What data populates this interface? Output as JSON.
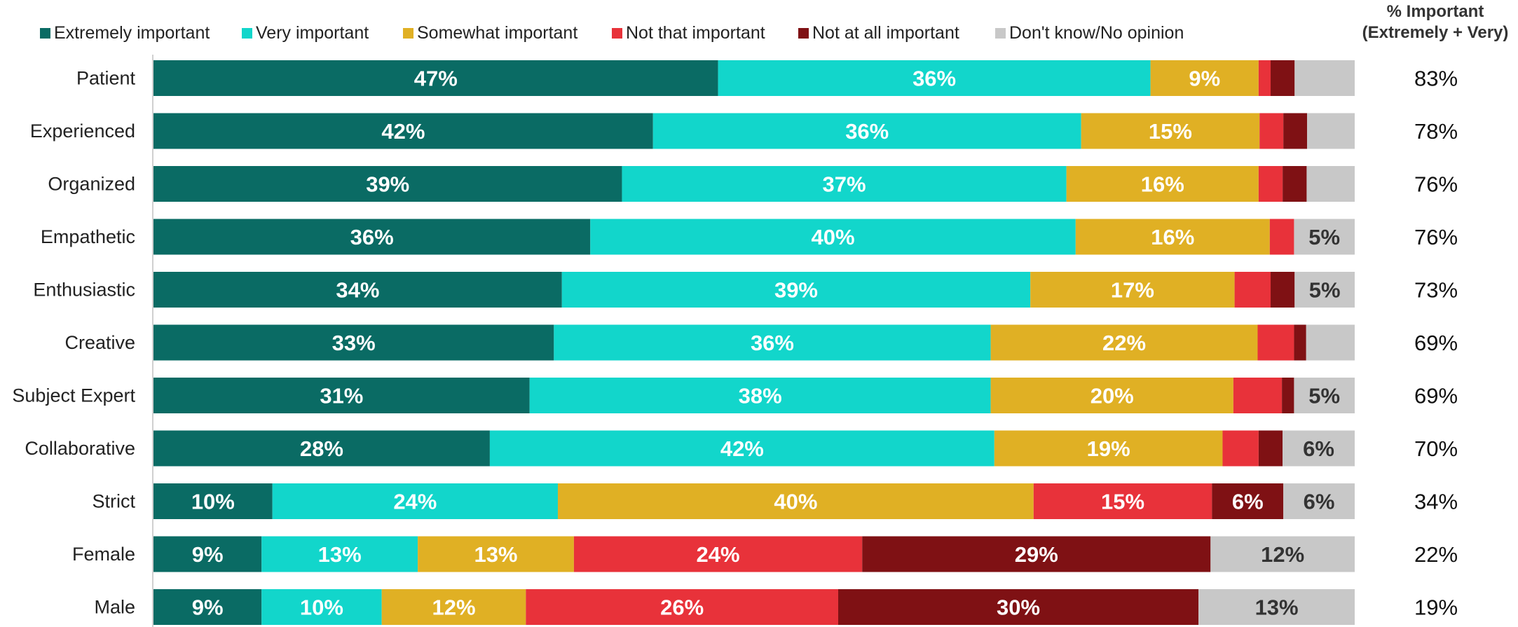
{
  "chart_data": {
    "type": "bar",
    "orientation": "horizontal",
    "stacked": true,
    "normalized": true,
    "legend_position": "top",
    "side_column_header": [
      "% Important",
      "(Extremely + Very)"
    ],
    "categories": [
      "Patient",
      "Experienced",
      "Organized",
      "Empathetic",
      "Enthusiastic",
      "Creative",
      "Subject Expert",
      "Collaborative",
      "Strict",
      "Female",
      "Male"
    ],
    "series": [
      {
        "name": "Extremely important",
        "color": "#0a6b64",
        "values": [
          47,
          42,
          39,
          36,
          34,
          33,
          31,
          28,
          10,
          9,
          9
        ],
        "labels": [
          "47%",
          "42%",
          "39%",
          "36%",
          "34%",
          "33%",
          "31%",
          "28%",
          "10%",
          "9%",
          "9%"
        ]
      },
      {
        "name": "Very important",
        "color": "#12d6cb",
        "values": [
          36,
          36,
          37,
          40,
          39,
          36,
          38,
          42,
          24,
          13,
          10
        ],
        "labels": [
          "36%",
          "36%",
          "37%",
          "40%",
          "39%",
          "36%",
          "38%",
          "42%",
          "24%",
          "13%",
          "10%"
        ]
      },
      {
        "name": "Somewhat important",
        "color": "#e0b024",
        "values": [
          9,
          15,
          16,
          16,
          17,
          22,
          20,
          19,
          40,
          13,
          12
        ],
        "labels": [
          "9%",
          "15%",
          "16%",
          "16%",
          "17%",
          "22%",
          "20%",
          "19%",
          "40%",
          "13%",
          "12%"
        ]
      },
      {
        "name": "Not that important",
        "color": "#e8323a",
        "values": [
          1,
          2,
          2,
          2,
          3,
          3,
          4,
          3,
          15,
          24,
          26
        ],
        "labels": [
          "",
          "",
          "",
          "",
          "",
          "",
          "",
          "",
          "15%",
          "24%",
          "26%"
        ]
      },
      {
        "name": "Not at all important",
        "color": "#7f1114",
        "values": [
          2,
          2,
          2,
          0,
          2,
          1,
          1,
          2,
          6,
          29,
          30
        ],
        "labels": [
          "",
          "",
          "",
          "",
          "",
          "",
          "",
          "",
          "6%",
          "29%",
          "30%"
        ]
      },
      {
        "name": "Don't know/No opinion",
        "color": "#c8c8c8",
        "values": [
          5,
          4,
          4,
          5,
          5,
          4,
          5,
          6,
          6,
          12,
          13
        ],
        "labels": [
          "",
          "",
          "",
          "5%",
          "5%",
          "",
          "5%",
          "6%",
          "6%",
          "12%",
          "13%"
        ]
      }
    ],
    "side_values": [
      "83%",
      "78%",
      "76%",
      "76%",
      "73%",
      "69%",
      "69%",
      "70%",
      "34%",
      "22%",
      "19%"
    ],
    "label_colors": {
      "light": "#ffffff",
      "dark": "#333333"
    }
  }
}
